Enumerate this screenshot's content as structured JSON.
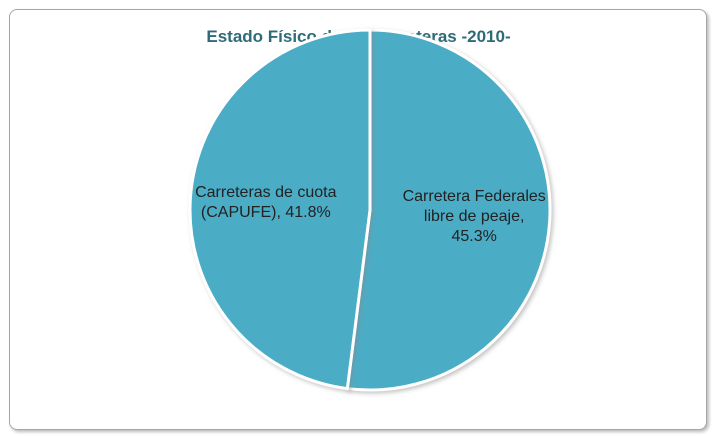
{
  "chart_data": {
    "type": "pie",
    "title": "Estado Físico de las carreteras -2010-",
    "values": [
      45.3,
      41.8
    ],
    "value_labels": [
      "Carretera Federales libre de peaje, 45.3%",
      "Carreteras de cuota (CAPUFE), 41.8%"
    ],
    "color": "#4bacc6",
    "start_angle": 0,
    "direction": "clockwise"
  }
}
